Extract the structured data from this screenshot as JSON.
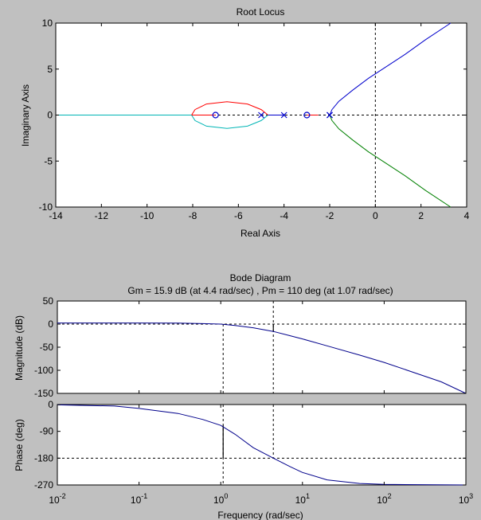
{
  "colors": {
    "figure_bg": "#c0c0c0",
    "axes_bg": "#ffffff",
    "locus_blue": "#0000cc",
    "locus_green": "#008000",
    "locus_red": "#ff0000",
    "locus_cyan": "#00b5b5",
    "bode_line": "#00008b"
  },
  "chart_data": [
    {
      "type": "line",
      "title": "Root Locus",
      "xlabel": "Real Axis",
      "ylabel": "Imaginary Axis",
      "xlim": [
        -14,
        4
      ],
      "ylim": [
        -10,
        10
      ],
      "xticks": [
        "-14",
        "-12",
        "-10",
        "-8",
        "-6",
        "-4",
        "-2",
        "0",
        "2",
        "4"
      ],
      "yticks": [
        "10",
        "5",
        "0",
        "-5",
        "-10"
      ],
      "grid": false,
      "reference_lines": {
        "x": 0,
        "y": 0
      },
      "poles": [
        [
          -2,
          0
        ],
        [
          -2,
          0
        ],
        [
          -4,
          0
        ],
        [
          -5,
          0
        ]
      ],
      "zeros": [
        [
          -3,
          0
        ],
        [
          -7,
          0
        ]
      ],
      "series": [
        {
          "color": "blue",
          "points": [
            [
              -2,
              0
            ],
            [
              -1.9,
              0.6
            ],
            [
              -1.6,
              1.5
            ],
            [
              -1.0,
              2.7
            ],
            [
              -0.3,
              4.0
            ],
            [
              0.5,
              5.3
            ],
            [
              1.3,
              6.6
            ],
            [
              2.2,
              8.2
            ],
            [
              3.3,
              10
            ]
          ]
        },
        {
          "color": "green",
          "points": [
            [
              -2,
              0
            ],
            [
              -1.9,
              -0.6
            ],
            [
              -1.6,
              -1.5
            ],
            [
              -1.0,
              -2.7
            ],
            [
              -0.3,
              -4.0
            ],
            [
              0.5,
              -5.3
            ],
            [
              1.3,
              -6.6
            ],
            [
              2.2,
              -8.2
            ],
            [
              3.3,
              -10
            ]
          ]
        },
        {
          "color": "red",
          "points": [
            [
              -3,
              0
            ],
            [
              -2.5,
              0
            ]
          ]
        },
        {
          "color": "blue",
          "points": [
            [
              -4,
              0
            ],
            [
              -4.7,
              0
            ]
          ]
        },
        {
          "color": "red",
          "points": [
            [
              -4.7,
              0
            ],
            [
              -5,
              0.6
            ],
            [
              -5.6,
              1.2
            ],
            [
              -6.5,
              1.45
            ],
            [
              -7.4,
              1.2
            ],
            [
              -7.9,
              0.6
            ],
            [
              -8.05,
              0
            ]
          ]
        },
        {
          "color": "cyan",
          "points": [
            [
              -4.7,
              0
            ],
            [
              -5,
              -0.6
            ],
            [
              -5.6,
              -1.2
            ],
            [
              -6.5,
              -1.45
            ],
            [
              -7.4,
              -1.2
            ],
            [
              -7.9,
              -0.6
            ],
            [
              -8.05,
              0
            ]
          ]
        },
        {
          "color": "red",
          "points": [
            [
              -8.05,
              0
            ],
            [
              -7,
              0
            ]
          ]
        },
        {
          "color": "cyan",
          "points": [
            [
              -8.05,
              0
            ],
            [
              -14,
              0
            ]
          ]
        }
      ]
    },
    {
      "type": "line",
      "title": "Bode Diagram",
      "subtitle": "Gm = 15.9 dB (at 4.4 rad/sec) ,  Pm = 110 deg (at 1.07 rad/sec)",
      "xlabel": "Frequency  (rad/sec)",
      "xscale": "log",
      "xlim": [
        0.01,
        1000
      ],
      "xticks": [
        "-2",
        "-1",
        "0",
        "1",
        "2",
        "3"
      ],
      "gain_crossover": 1.07,
      "phase_crossover": 4.4,
      "magnitude": {
        "ylabel": "Magnitude (dB)",
        "ylim": [
          -150,
          50
        ],
        "yticks": [
          "50",
          "0",
          "-50",
          "-100",
          "-150"
        ],
        "reference_line": 0,
        "x": [
          0.01,
          0.1,
          0.3,
          0.6,
          1.0,
          1.5,
          2.5,
          4.4,
          7,
          10,
          20,
          50,
          100,
          200,
          500,
          1000
        ],
        "y": [
          2.5,
          2.4,
          2.0,
          1.0,
          0,
          -3,
          -8,
          -15.9,
          -25,
          -32,
          -47,
          -67,
          -83,
          -101,
          -125,
          -150
        ]
      },
      "phase": {
        "ylabel": "Phase (deg)",
        "ylim": [
          -270,
          0
        ],
        "yticks": [
          "0",
          "-90",
          "-180",
          "-270"
        ],
        "reference_line": -180,
        "x": [
          0.01,
          0.05,
          0.1,
          0.3,
          0.6,
          1.0,
          1.5,
          2.5,
          4.4,
          7,
          10,
          20,
          50,
          100,
          1000
        ],
        "y": [
          -1,
          -5,
          -13,
          -30,
          -50,
          -70,
          -100,
          -145,
          -180,
          -208,
          -228,
          -253,
          -265,
          -268,
          -270
        ]
      }
    }
  ]
}
